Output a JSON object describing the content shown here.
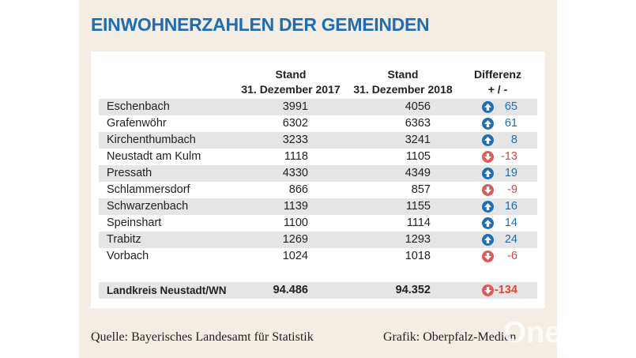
{
  "title": "EINWOHNERZAHLEN DER GEMEINDEN",
  "table": {
    "headers": [
      [
        "Stand",
        "31. Dezember 2017"
      ],
      [
        "Stand",
        "31. Dezember 2018"
      ],
      [
        "Differenz",
        "+ / -"
      ]
    ],
    "rows": [
      [
        "Eschenbach",
        "3991",
        "4056",
        "65"
      ],
      [
        "Grafenwöhr",
        "6302",
        "6363",
        "61"
      ],
      [
        "Kirchenthumbach",
        "3233",
        "3241",
        "8"
      ],
      [
        "Neustadt am Kulm",
        "1118",
        "1105",
        "-13"
      ],
      [
        "Pressath",
        "4330",
        "4349",
        "19"
      ],
      [
        "Schlammersdorf",
        "866",
        "857",
        "-9"
      ],
      [
        "Schwarzenbach",
        "1139",
        "1155",
        "16"
      ],
      [
        "Speinshart",
        "1100",
        "1114",
        "14"
      ],
      [
        "Trabitz",
        "1269",
        "1293",
        "24"
      ],
      [
        "Vorbach",
        "1024",
        "1018",
        "-6"
      ]
    ],
    "total": [
      "Landkreis Neustadt/WN",
      "94.486",
      "94.352",
      "-134"
    ]
  },
  "source": "Quelle: Bayerisches Landesamt für Statistik",
  "credit": "Grafik: Oberpfalz-Medien",
  "watermark": "Onetz.de"
}
